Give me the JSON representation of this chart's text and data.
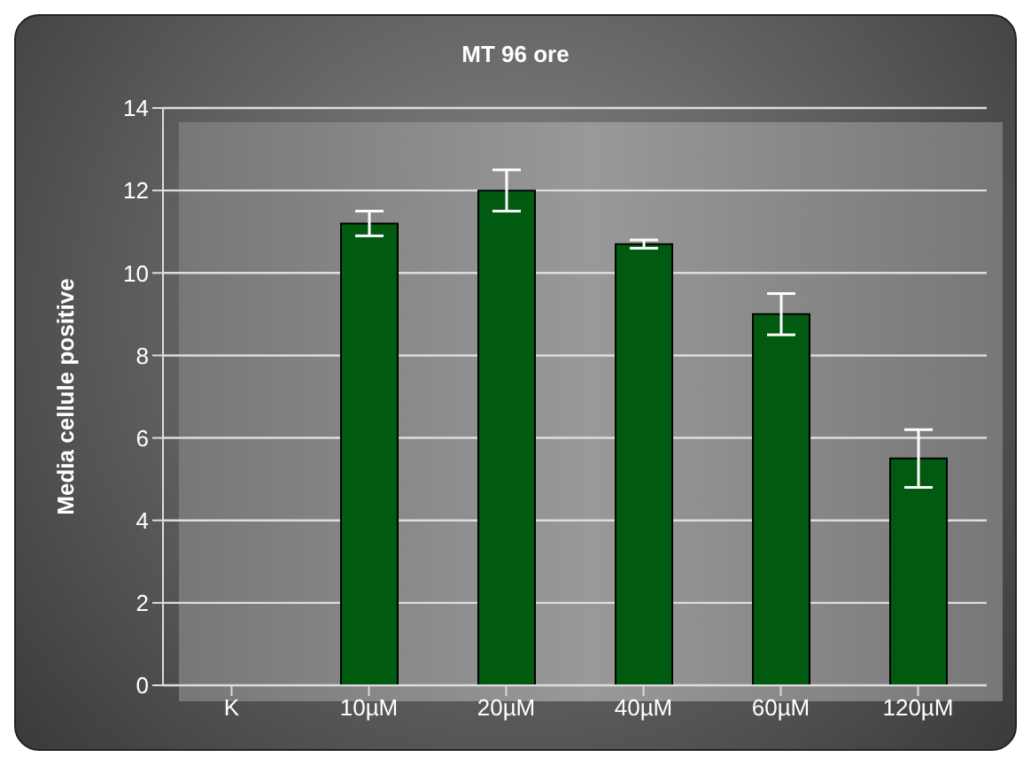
{
  "chart_data": {
    "type": "bar",
    "title": "MT 96 ore",
    "ylabel": "Media cellule positive",
    "categories": [
      "K",
      "10µM",
      "20µM",
      "40µM",
      "60µM",
      "120µM"
    ],
    "values": [
      null,
      11.2,
      12,
      10.7,
      9,
      5.5
    ],
    "errors": [
      null,
      0.3,
      0.5,
      0.1,
      0.5,
      0.7
    ],
    "color": "#005a10",
    "ylim": [
      0,
      14
    ],
    "yticks": [
      0,
      2,
      4,
      6,
      8,
      10,
      12,
      14
    ],
    "grid": "y"
  }
}
